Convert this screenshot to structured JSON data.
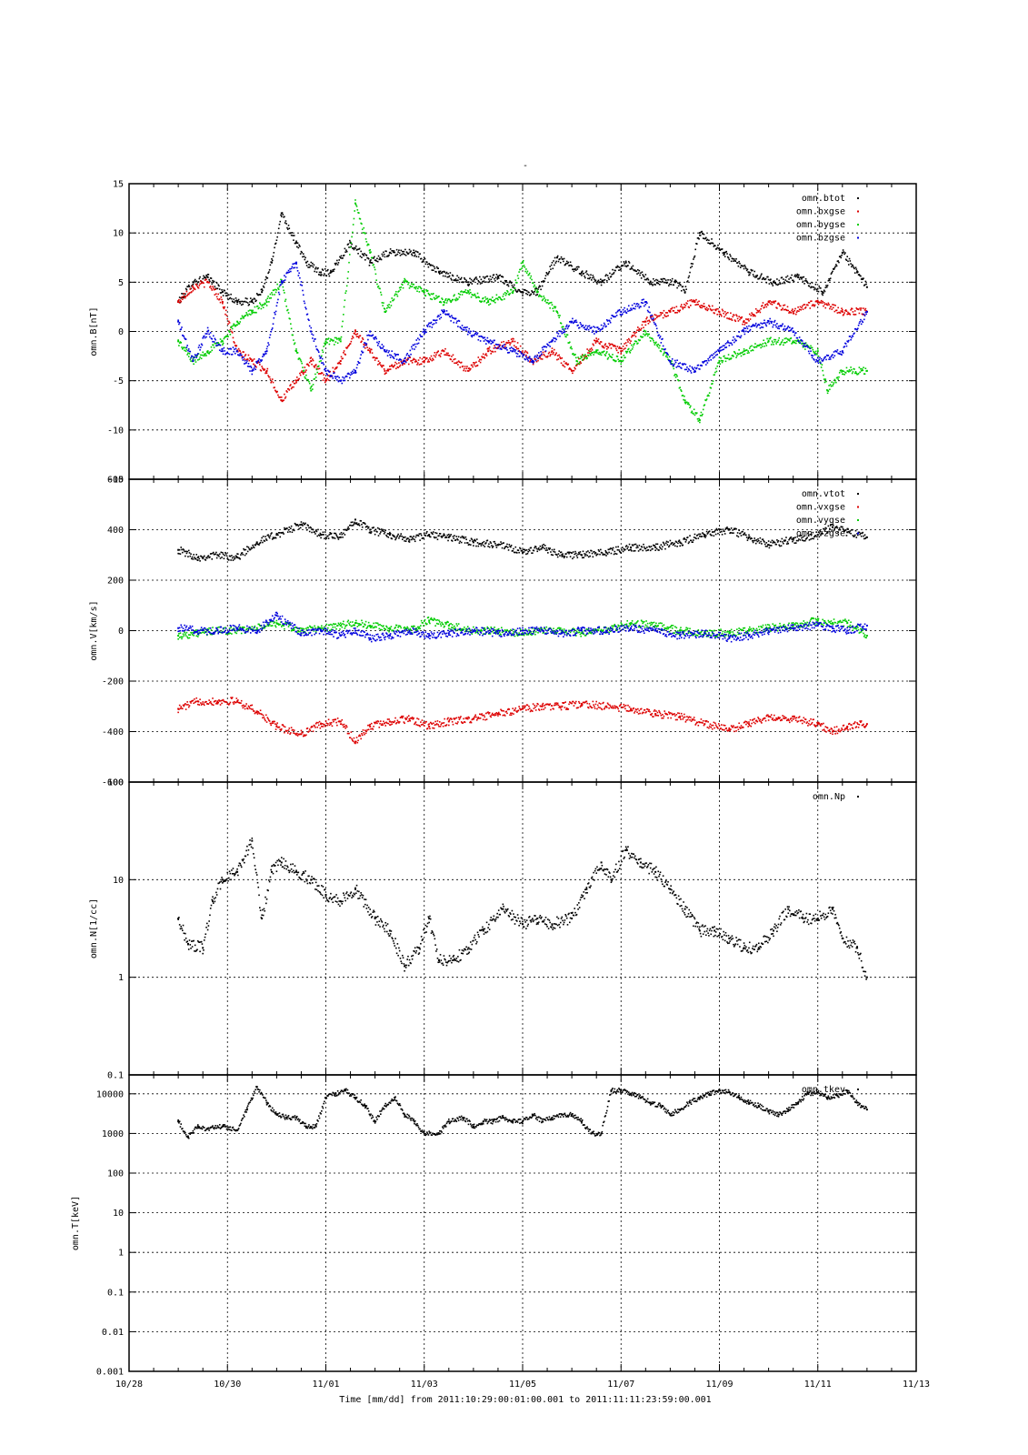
{
  "figure": {
    "title": "-",
    "x_axis_label": "Time [mm/dd]  from 2011:10:29:00:01:00.001  to  2011:11:11:23:59:00.001",
    "x_ticks": [
      "10/28",
      "10/30",
      "11/01",
      "11/03",
      "11/05",
      "11/07",
      "11/09",
      "11/11",
      "11/13"
    ],
    "x_tick_days": [
      0,
      2,
      4,
      6,
      8,
      10,
      12,
      14,
      16
    ],
    "x_range_days": [
      0,
      16
    ],
    "colors": {
      "black": "#000000",
      "red": "#dd0000",
      "green": "#00cc00",
      "blue": "#0000dd"
    }
  },
  "chart_data": [
    {
      "type": "scatter",
      "ylabel": "omn.B[nT]",
      "ylim": [
        -15,
        15
      ],
      "yscale": "linear",
      "yticks": [
        -15,
        -10,
        -5,
        0,
        5,
        10,
        15
      ],
      "grid": true,
      "legend_position": "top-right",
      "x_units": "days since 10/28 00:00",
      "series": [
        {
          "name": "omn.btot",
          "color": "#000000",
          "x": [
            1.0,
            1.3,
            1.6,
            1.9,
            2.2,
            2.5,
            2.7,
            2.9,
            3.1,
            3.4,
            3.6,
            3.9,
            4.1,
            4.5,
            4.9,
            5.3,
            5.8,
            6.3,
            6.9,
            7.5,
            8.0,
            8.3,
            8.7,
            9.2,
            9.6,
            10.1,
            10.6,
            11.1,
            11.3,
            11.6,
            12.1,
            12.6,
            13.1,
            13.6,
            14.1,
            14.5,
            14.8,
            15.0
          ],
          "values": [
            3,
            5,
            5.5,
            4,
            3,
            3,
            4,
            7,
            12,
            9,
            7,
            6,
            6,
            9,
            7,
            8,
            8,
            6,
            5,
            5.5,
            4,
            4,
            7.5,
            6,
            5,
            7,
            5,
            5,
            4,
            10,
            8,
            6,
            5,
            5.5,
            4,
            8,
            6,
            4.5
          ]
        },
        {
          "name": "omn.bxgse",
          "color": "#dd0000",
          "x": [
            1.0,
            1.3,
            1.6,
            1.9,
            2.2,
            2.5,
            2.8,
            3.1,
            3.4,
            3.7,
            4.0,
            4.3,
            4.6,
            4.9,
            5.2,
            5.6,
            6.0,
            6.4,
            6.9,
            7.3,
            7.8,
            8.2,
            8.6,
            9.0,
            9.5,
            10.0,
            10.5,
            11.0,
            11.5,
            12.0,
            12.5,
            13.0,
            13.5,
            14.0,
            14.5,
            15.0
          ],
          "values": [
            3,
            4.5,
            5,
            3,
            -2,
            -3,
            -4,
            -7,
            -5,
            -3,
            -5,
            -3,
            0,
            -2,
            -4,
            -3,
            -3,
            -2,
            -4,
            -2,
            -1,
            -3,
            -2,
            -4,
            -1,
            -2,
            1,
            2,
            3,
            2,
            1,
            3,
            2,
            3,
            2,
            2
          ]
        },
        {
          "name": "omn.bygse",
          "color": "#00cc00",
          "x": [
            1.0,
            1.3,
            1.6,
            1.9,
            2.2,
            2.5,
            2.8,
            3.1,
            3.4,
            3.7,
            4.0,
            4.3,
            4.6,
            4.9,
            5.2,
            5.6,
            6.0,
            6.4,
            6.9,
            7.3,
            7.8,
            8.0,
            8.3,
            8.7,
            9.1,
            9.5,
            10.0,
            10.5,
            11.0,
            11.3,
            11.6,
            12.0,
            12.5,
            13.0,
            13.5,
            14.0,
            14.2,
            14.5,
            15.0
          ],
          "values": [
            -1,
            -3,
            -2,
            -1,
            1,
            2,
            3,
            5,
            -2,
            -6,
            -1,
            -1,
            13,
            8,
            2,
            5,
            4,
            3,
            4,
            3,
            4,
            7,
            4,
            2,
            -3,
            -2,
            -3,
            0,
            -3,
            -7,
            -9,
            -3,
            -2,
            -1,
            -1,
            -2,
            -6,
            -4,
            -4
          ]
        },
        {
          "name": "omn.bzgse",
          "color": "#0000dd",
          "x": [
            1.0,
            1.3,
            1.6,
            1.9,
            2.2,
            2.5,
            2.8,
            3.1,
            3.4,
            3.7,
            4.0,
            4.3,
            4.6,
            4.9,
            5.2,
            5.6,
            6.0,
            6.4,
            6.9,
            7.3,
            7.8,
            8.2,
            8.6,
            9.0,
            9.5,
            10.0,
            10.5,
            11.0,
            11.5,
            12.0,
            12.5,
            13.0,
            13.5,
            14.0,
            14.5,
            15.0
          ],
          "values": [
            1,
            -3,
            0,
            -2,
            -2,
            -4,
            -2,
            5,
            7,
            0,
            -4,
            -5,
            -4,
            0,
            -2,
            -3,
            0,
            2,
            0,
            -1,
            -2,
            -3,
            -1,
            1,
            0,
            2,
            3,
            -3,
            -4,
            -2,
            0,
            1,
            0,
            -3,
            -2,
            2
          ]
        }
      ]
    },
    {
      "type": "scatter",
      "ylabel": "omn.V[km/s]",
      "ylim": [
        -600,
        600
      ],
      "yscale": "linear",
      "yticks": [
        -600,
        -400,
        -200,
        0,
        200,
        400,
        600
      ],
      "grid": true,
      "legend_position": "top-right",
      "series": [
        {
          "name": "omn.vtot",
          "color": "#000000",
          "x": [
            1.0,
            1.4,
            1.8,
            2.2,
            2.6,
            3.0,
            3.5,
            3.9,
            4.3,
            4.6,
            4.9,
            5.3,
            5.7,
            6.1,
            6.5,
            7.0,
            7.5,
            8.0,
            8.4,
            8.8,
            9.2,
            9.7,
            10.2,
            10.7,
            11.2,
            11.7,
            12.2,
            12.6,
            13.0,
            13.5,
            14.0,
            14.3,
            14.6,
            15.0
          ],
          "values": [
            320,
            290,
            300,
            290,
            350,
            380,
            420,
            380,
            370,
            440,
            400,
            380,
            360,
            380,
            370,
            350,
            340,
            310,
            330,
            300,
            300,
            310,
            330,
            330,
            350,
            380,
            400,
            370,
            340,
            360,
            380,
            410,
            390,
            370
          ]
        },
        {
          "name": "omn.vxgse",
          "color": "#dd0000",
          "x": [
            1.0,
            1.4,
            1.8,
            2.2,
            2.6,
            3.0,
            3.5,
            3.9,
            4.3,
            4.6,
            4.9,
            5.3,
            5.7,
            6.1,
            6.5,
            7.0,
            7.5,
            8.0,
            8.4,
            8.8,
            9.2,
            9.7,
            10.2,
            10.7,
            11.2,
            11.7,
            12.2,
            12.6,
            13.0,
            13.5,
            14.0,
            14.3,
            14.6,
            15.0
          ],
          "values": [
            -310,
            -280,
            -280,
            -280,
            -320,
            -380,
            -410,
            -370,
            -360,
            -440,
            -380,
            -360,
            -350,
            -380,
            -360,
            -350,
            -330,
            -310,
            -300,
            -300,
            -290,
            -300,
            -310,
            -330,
            -340,
            -370,
            -390,
            -370,
            -340,
            -350,
            -370,
            -400,
            -380,
            -370
          ]
        },
        {
          "name": "omn.vygse",
          "color": "#00cc00",
          "x": [
            1.0,
            1.4,
            1.8,
            2.2,
            2.6,
            3.0,
            3.5,
            3.9,
            4.3,
            4.6,
            4.9,
            5.3,
            5.7,
            6.1,
            6.5,
            7.0,
            7.5,
            8.0,
            8.4,
            8.8,
            9.2,
            9.7,
            10.2,
            10.7,
            11.2,
            11.7,
            12.2,
            12.6,
            13.0,
            13.5,
            14.0,
            14.3,
            14.6,
            15.0
          ],
          "values": [
            -20,
            -10,
            0,
            0,
            10,
            30,
            0,
            10,
            20,
            30,
            20,
            10,
            0,
            40,
            20,
            0,
            0,
            -10,
            0,
            0,
            -10,
            0,
            30,
            20,
            0,
            -10,
            -10,
            0,
            10,
            20,
            40,
            30,
            30,
            -20
          ]
        },
        {
          "name": "omn.vzgse",
          "color": "#0000dd",
          "x": [
            1.0,
            1.4,
            1.8,
            2.2,
            2.6,
            3.0,
            3.5,
            3.9,
            4.3,
            4.6,
            4.9,
            5.3,
            5.7,
            6.1,
            6.5,
            7.0,
            7.5,
            8.0,
            8.4,
            8.8,
            9.2,
            9.7,
            10.2,
            10.7,
            11.2,
            11.7,
            12.2,
            12.6,
            13.0,
            13.5,
            14.0,
            14.3,
            14.6,
            15.0
          ],
          "values": [
            10,
            0,
            0,
            10,
            0,
            60,
            -10,
            0,
            -20,
            0,
            -30,
            -20,
            0,
            -20,
            -10,
            0,
            -10,
            0,
            0,
            -10,
            0,
            0,
            10,
            0,
            -20,
            -10,
            -30,
            -20,
            0,
            10,
            20,
            10,
            0,
            20
          ]
        }
      ]
    },
    {
      "type": "scatter",
      "ylabel": "omn.N[1/cc]",
      "ylim": [
        0.1,
        100
      ],
      "yscale": "log",
      "yticks": [
        0.1,
        1,
        10,
        100
      ],
      "ytick_labels": [
        "0.1",
        "1",
        "10",
        "100"
      ],
      "grid": true,
      "legend_position": "top-right",
      "series": [
        {
          "name": "omn.Np",
          "color": "#000000",
          "x": [
            1.0,
            1.2,
            1.5,
            1.7,
            1.9,
            2.2,
            2.5,
            2.7,
            2.9,
            3.1,
            3.4,
            3.7,
            4.0,
            4.3,
            4.6,
            5.0,
            5.3,
            5.6,
            5.9,
            6.1,
            6.3,
            6.6,
            6.9,
            7.2,
            7.6,
            8.0,
            8.3,
            8.6,
            9.0,
            9.3,
            9.6,
            9.8,
            10.1,
            10.4,
            10.7,
            11.0,
            11.3,
            11.6,
            11.9,
            12.2,
            12.5,
            12.8,
            13.1,
            13.4,
            13.7,
            14.0,
            14.3,
            14.5,
            14.8,
            15.0
          ],
          "values": [
            4,
            2.2,
            2,
            6,
            10,
            12,
            25,
            4,
            12,
            15,
            12,
            10,
            7,
            6,
            8,
            4,
            3,
            1.3,
            2,
            4,
            1.5,
            1.5,
            2,
            3,
            5,
            3.5,
            4,
            3.5,
            4,
            8,
            15,
            10,
            20,
            15,
            12,
            8,
            5,
            3,
            3,
            2.5,
            2,
            2,
            3,
            5,
            4,
            4,
            5,
            2.5,
            2,
            1
          ]
        }
      ]
    },
    {
      "type": "scatter",
      "ylabel": "omn.T[keV]",
      "ylim": [
        0.001,
        30000
      ],
      "yscale": "log",
      "yticks": [
        0.001,
        0.01,
        0.1,
        1,
        10,
        100,
        1000,
        10000
      ],
      "ytick_labels": [
        "0.001",
        "0.01",
        "0.1",
        "1",
        "10",
        "100",
        "1000",
        "10000"
      ],
      "grid": true,
      "legend_position": "top-right",
      "series": [
        {
          "name": "omn.tkev",
          "color": "#000000",
          "x": [
            1.0,
            1.2,
            1.4,
            1.6,
            1.9,
            2.2,
            2.4,
            2.6,
            2.8,
            3.0,
            3.2,
            3.4,
            3.6,
            3.8,
            4.0,
            4.2,
            4.4,
            4.6,
            4.8,
            5.0,
            5.2,
            5.4,
            5.6,
            5.8,
            6.0,
            6.3,
            6.5,
            6.8,
            7.0,
            7.2,
            7.4,
            7.6,
            7.8,
            8.0,
            8.2,
            8.4,
            8.6,
            8.8,
            9.0,
            9.2,
            9.4,
            9.6,
            9.8,
            10.0,
            10.2,
            10.4,
            10.6,
            10.8,
            11.0,
            11.2,
            11.4,
            11.6,
            11.8,
            12.0,
            12.2,
            12.4,
            12.6,
            12.8,
            13.0,
            13.2,
            13.4,
            13.6,
            13.8,
            14.0,
            14.2,
            14.4,
            14.6,
            14.8,
            15.0
          ],
          "values": [
            2000,
            800,
            1500,
            1300,
            1500,
            1200,
            4000,
            15000,
            6000,
            3000,
            2500,
            2500,
            1500,
            1500,
            8000,
            10000,
            12000,
            8000,
            5000,
            2000,
            5000,
            8000,
            3000,
            2000,
            1000,
            1000,
            2000,
            2500,
            1500,
            2000,
            2000,
            2500,
            2000,
            2000,
            3000,
            2000,
            2500,
            3000,
            3000,
            2000,
            1000,
            1000,
            12000,
            12000,
            10000,
            8000,
            6000,
            5000,
            3000,
            4000,
            6000,
            8000,
            10000,
            12000,
            11000,
            8000,
            6000,
            5000,
            3500,
            3000,
            4000,
            6000,
            10000,
            11000,
            8000,
            9000,
            12000,
            6000,
            4000
          ]
        }
      ]
    }
  ]
}
